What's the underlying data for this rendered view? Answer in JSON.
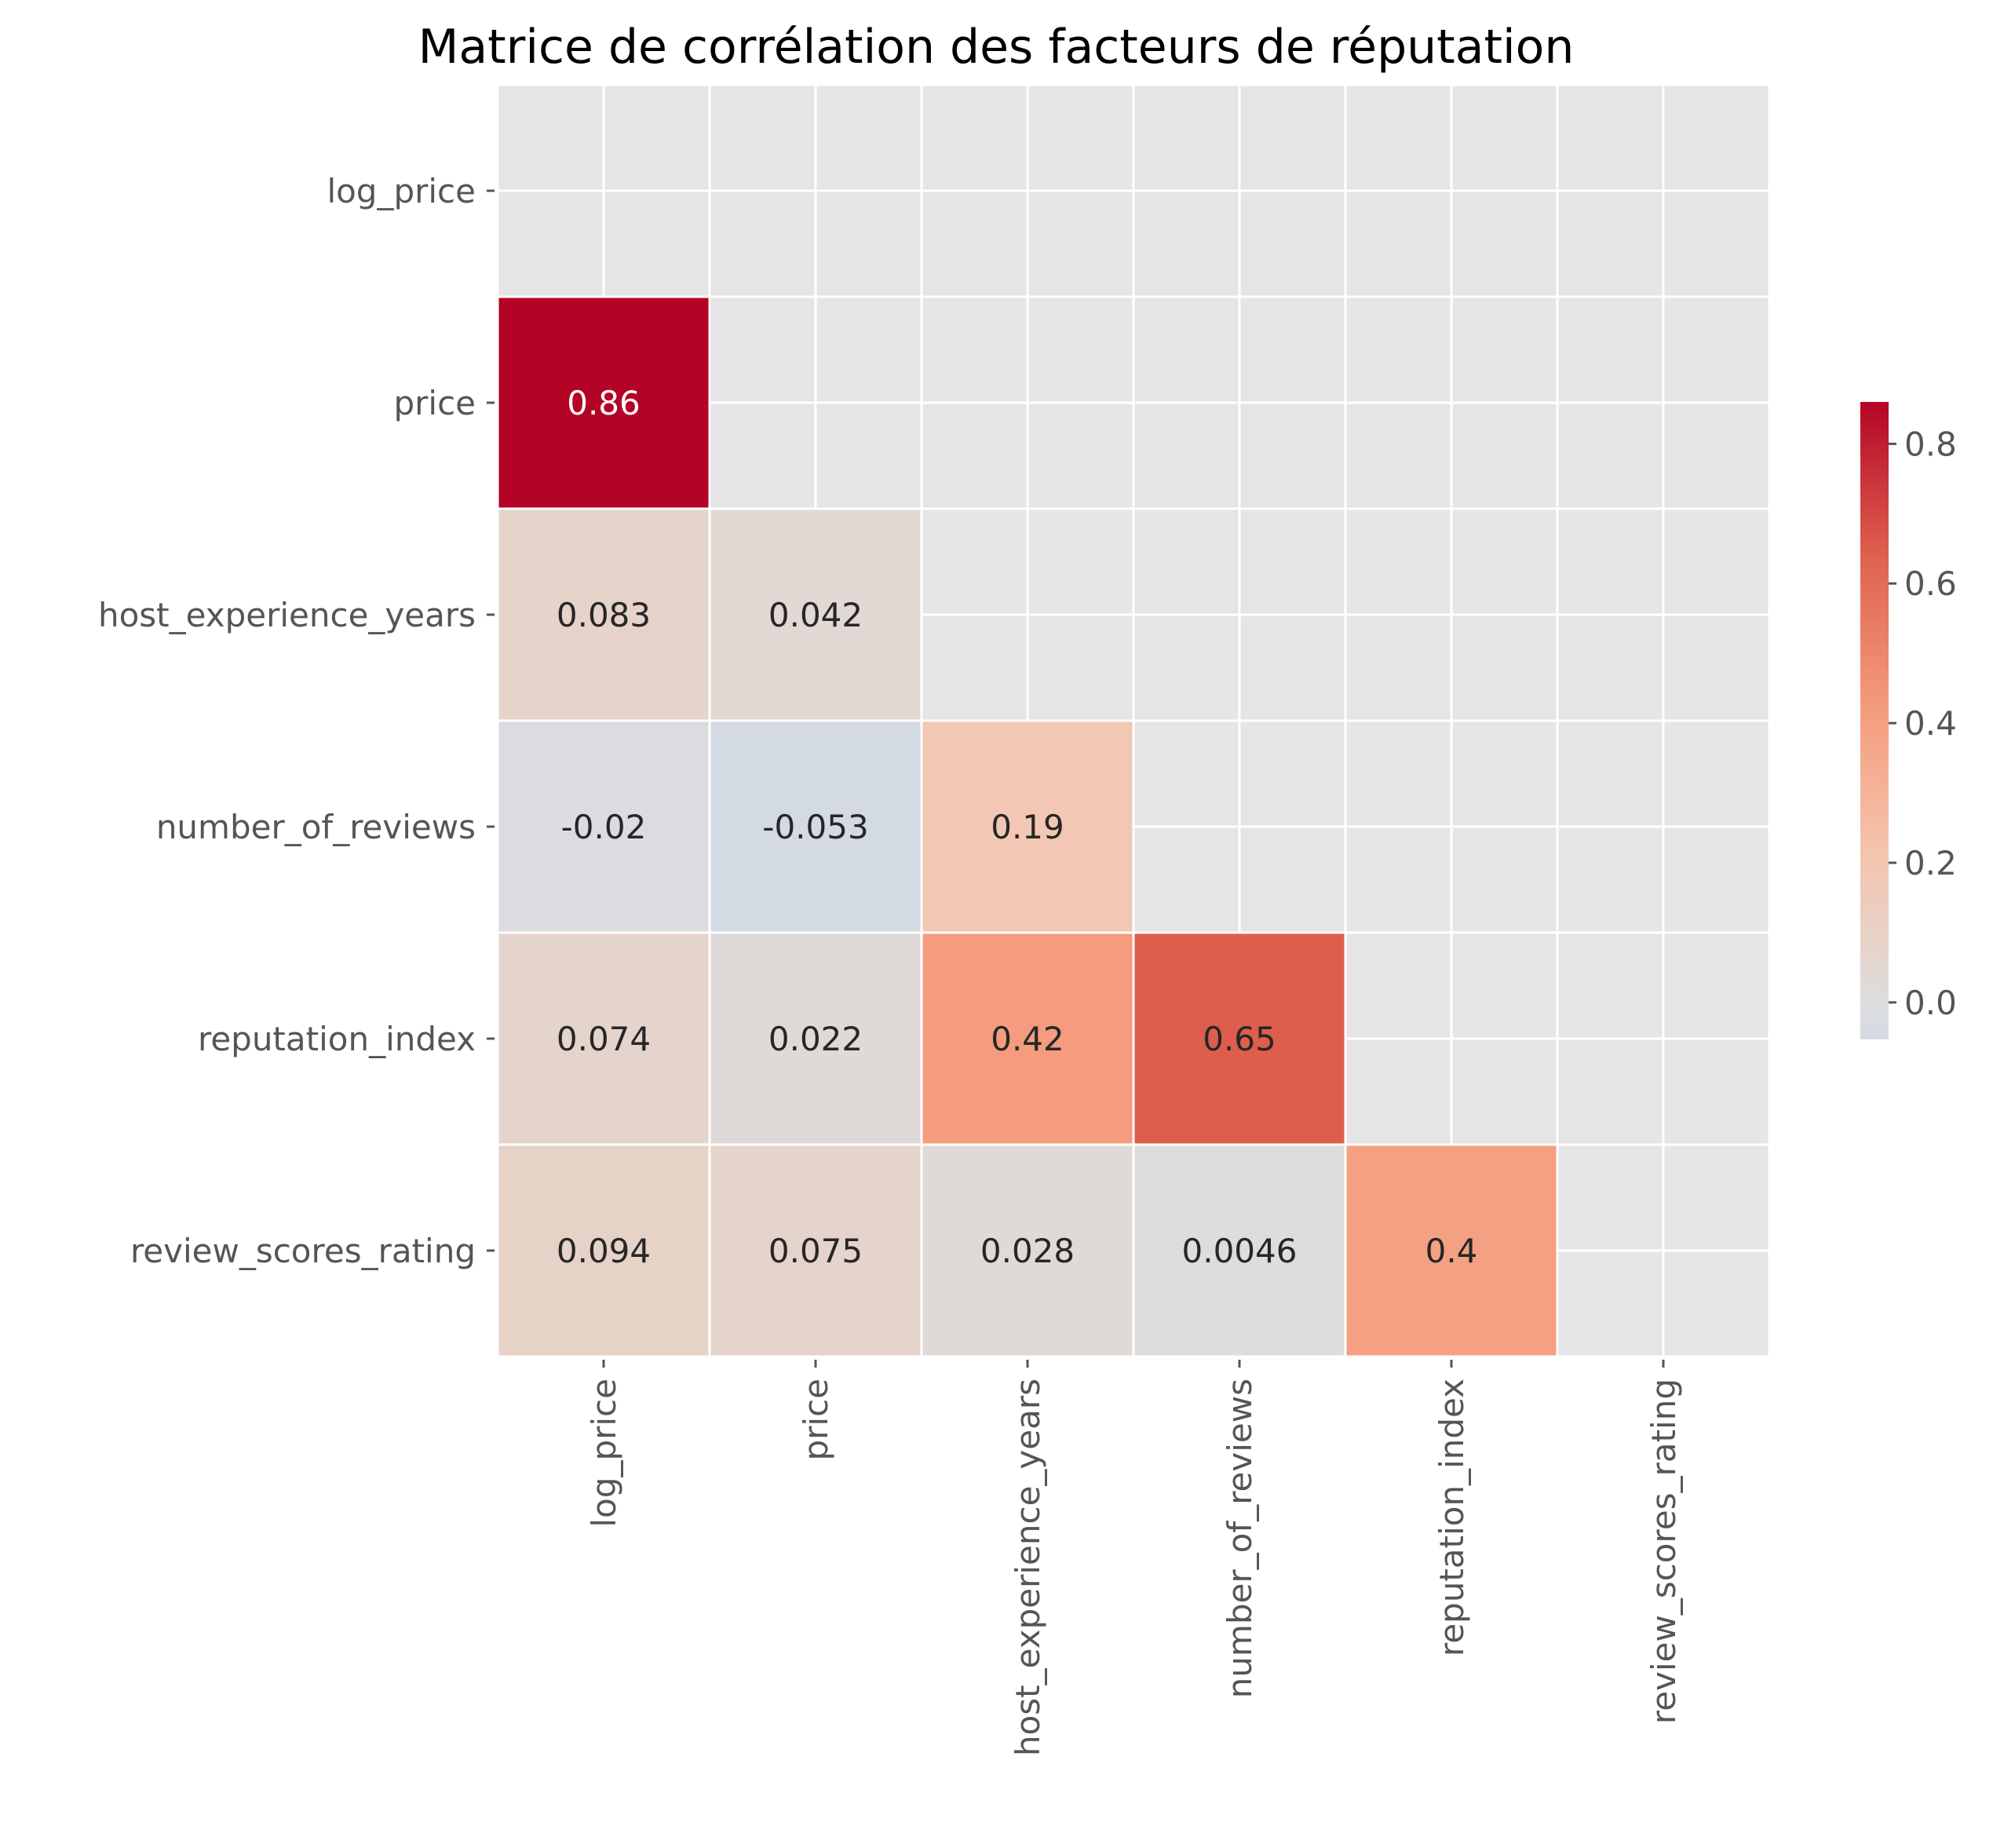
{
  "chart_data": {
    "type": "heatmap",
    "title": "Matrice de corrélation des facteurs de réputation",
    "variables": [
      "log_price",
      "price",
      "host_experience_years",
      "number_of_reviews",
      "reputation_index",
      "review_scores_rating"
    ],
    "mask": "upper-triangle-including-diagonal",
    "cells": [
      {
        "row": 1,
        "col": 0,
        "value": 0.86,
        "label": "0.86"
      },
      {
        "row": 2,
        "col": 0,
        "value": 0.083,
        "label": "0.083"
      },
      {
        "row": 2,
        "col": 1,
        "value": 0.042,
        "label": "0.042"
      },
      {
        "row": 3,
        "col": 0,
        "value": -0.02,
        "label": "-0.02"
      },
      {
        "row": 3,
        "col": 1,
        "value": -0.053,
        "label": "-0.053"
      },
      {
        "row": 3,
        "col": 2,
        "value": 0.19,
        "label": "0.19"
      },
      {
        "row": 4,
        "col": 0,
        "value": 0.074,
        "label": "0.074"
      },
      {
        "row": 4,
        "col": 1,
        "value": 0.022,
        "label": "0.022"
      },
      {
        "row": 4,
        "col": 2,
        "value": 0.42,
        "label": "0.42"
      },
      {
        "row": 4,
        "col": 3,
        "value": 0.65,
        "label": "0.65"
      },
      {
        "row": 5,
        "col": 0,
        "value": 0.094,
        "label": "0.094"
      },
      {
        "row": 5,
        "col": 1,
        "value": 0.075,
        "label": "0.075"
      },
      {
        "row": 5,
        "col": 2,
        "value": 0.028,
        "label": "0.028"
      },
      {
        "row": 5,
        "col": 3,
        "value": 0.0046,
        "label": "0.0046"
      },
      {
        "row": 5,
        "col": 4,
        "value": 0.4,
        "label": "0.4"
      }
    ],
    "colorbar": {
      "colormap": "coolwarm",
      "center": 0,
      "vmin": -0.053,
      "vmax": 0.86,
      "ticks": [
        0.0,
        0.2,
        0.4,
        0.6,
        0.8
      ],
      "tick_labels": [
        "0.0",
        "0.2",
        "0.4",
        "0.6",
        "0.8"
      ]
    },
    "grid": true,
    "colors": {
      "background": "#e5e5e5",
      "grid": "#ffffff",
      "annotation_dark": "#262626",
      "annotation_light": "#ffffff"
    }
  }
}
